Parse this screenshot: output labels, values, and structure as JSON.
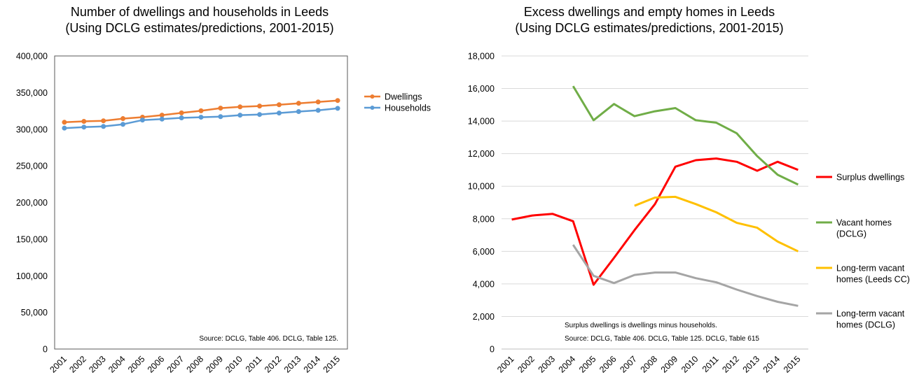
{
  "chart_data": [
    {
      "type": "line",
      "title": [
        "Number of dwellings and households in Leeds",
        "(Using DCLG estimates/predictions, 2001-2015)"
      ],
      "categories": [
        "2001",
        "2002",
        "2003",
        "2004",
        "2005",
        "2006",
        "2007",
        "2008",
        "2009",
        "2010",
        "2011",
        "2012",
        "2013",
        "2014",
        "2015"
      ],
      "ylim": [
        0,
        400000
      ],
      "yticks": [
        "0",
        "50,000",
        "100,000",
        "150,000",
        "200,000",
        "250,000",
        "300,000",
        "350,000",
        "400,000"
      ],
      "grid": false,
      "legend_position": "right",
      "series": [
        {
          "name": "Dwellings",
          "color": "#ED7D31",
          "markers": true,
          "values": [
            309500,
            310700,
            311500,
            314500,
            316500,
            319200,
            322300,
            325200,
            328800,
            330500,
            331600,
            333400,
            335400,
            337200,
            339200
          ]
        },
        {
          "name": "Households",
          "color": "#5B9BD5",
          "markers": true,
          "values": [
            301500,
            302900,
            303800,
            306700,
            312500,
            313800,
            315500,
            316400,
            317200,
            319200,
            320100,
            322100,
            324100,
            325800,
            328500
          ]
        }
      ],
      "note": "Source: DCLG, Table 406. DCLG, Table 125."
    },
    {
      "type": "line",
      "title": [
        "Excess dwellings and empty homes in Leeds",
        "(Using DCLG estimates/predictions, 2001-2015)"
      ],
      "categories": [
        "2001",
        "2002",
        "2003",
        "2004",
        "2005",
        "2006",
        "2007",
        "2008",
        "2009",
        "2010",
        "2011",
        "2012",
        "2013",
        "2014",
        "2015"
      ],
      "ylim": [
        0,
        18000
      ],
      "yticks": [
        "0",
        "2,000",
        "4,000",
        "6,000",
        "8,000",
        "10,000",
        "12,000",
        "14,000",
        "16,000",
        "18,000"
      ],
      "grid": true,
      "legend_position": "right",
      "series": [
        {
          "name": "Surplus dwellings",
          "color": "#FF0000",
          "values": [
            7950,
            8200,
            8300,
            7850,
            3950,
            5600,
            7300,
            8900,
            11200,
            11600,
            11700,
            11500,
            10950,
            11500,
            11000
          ]
        },
        {
          "name": "Vacant homes (DCLG)",
          "name_lines": [
            "Vacant homes",
            "(DCLG)"
          ],
          "color": "#70AD47",
          "values": [
            null,
            null,
            null,
            16150,
            14050,
            15050,
            14300,
            14600,
            14800,
            14050,
            13900,
            13250,
            11850,
            10700,
            10100
          ]
        },
        {
          "name": "Long-term vacant homes (Leeds CC)",
          "name_lines": [
            "Long-term vacant",
            "homes (Leeds CC)"
          ],
          "color": "#FFC000",
          "values": [
            null,
            null,
            null,
            null,
            null,
            null,
            8800,
            9300,
            9350,
            8900,
            8400,
            7750,
            7450,
            6600,
            6000
          ]
        },
        {
          "name": "Long-term vacant homes (DCLG)",
          "name_lines": [
            "Long-term vacant",
            "homes (DCLG)"
          ],
          "color": "#A5A5A5",
          "values": [
            null,
            null,
            null,
            6400,
            4500,
            4050,
            4550,
            4700,
            4700,
            4350,
            4100,
            3650,
            3250,
            2900,
            2650
          ]
        }
      ],
      "note_lines": [
        "Surplus dwellings is dwellings minus households.",
        "Source: DCLG, Table 406. DCLG, Table 125. DCLG, Table 615"
      ]
    }
  ]
}
